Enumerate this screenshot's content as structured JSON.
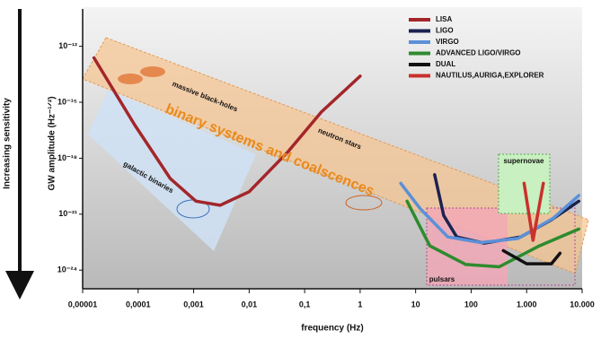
{
  "chart_data": {
    "type": "line",
    "side_label": "Increasing sensitivity",
    "y_label": "GW amplitude (Hz⁻¹ᐟ²)",
    "x_label": "frequency (Hz)",
    "xscale": "log",
    "yscale": "log",
    "xlim": [
      1e-05,
      10000
    ],
    "ylim": [
      1e-25,
      1e-10
    ],
    "xticks": [
      {
        "value": 1e-05,
        "label": "0,00001"
      },
      {
        "value": 0.0001,
        "label": "0,0001"
      },
      {
        "value": 0.001,
        "label": "0,001"
      },
      {
        "value": 0.01,
        "label": "0,01"
      },
      {
        "value": 0.1,
        "label": "0,1"
      },
      1,
      10,
      100,
      {
        "value": 1000,
        "label": "1.000"
      },
      {
        "value": 10000,
        "label": "10.000"
      }
    ],
    "yticks": [
      {
        "value": 1e-12,
        "label": "10⁻¹²"
      },
      {
        "value": 1e-15,
        "label": "10⁻¹⁵"
      },
      {
        "value": 1e-18,
        "label": "10⁻¹⁸"
      },
      {
        "value": 1e-21,
        "label": "10⁻²¹"
      },
      {
        "value": 1e-24,
        "label": "10⁻²⁴"
      }
    ],
    "legend": "top-right",
    "annotations": [
      "binary systems and coalscences",
      "massive black-holes",
      "galactic binaries",
      "neutron stars",
      "supernovae",
      "pulsars"
    ],
    "series": [
      {
        "name": "LISA",
        "color": "#a3262a",
        "x": [
          1.6e-05,
          8.7e-05,
          0.00038,
          0.0011,
          0.003,
          0.01,
          0.05,
          0.2,
          1
        ],
        "values": [
          2.4e-13,
          6e-17,
          8e-20,
          5e-21,
          3e-21,
          1.6e-20,
          2.2e-18,
          3e-16,
          2.5e-14
        ]
      },
      {
        "name": "LIGO",
        "color": "#1c2350",
        "x": [
          22,
          32,
          55,
          170,
          780,
          2800,
          8700
        ],
        "values": [
          1.3e-19,
          8.5e-22,
          6e-23,
          2.8e-23,
          6e-23,
          5e-22,
          5e-21
        ]
      },
      {
        "name": "VIRGO",
        "color": "#5b90d8",
        "x": [
          5.4,
          12,
          38,
          150,
          700,
          3000,
          8700
        ],
        "values": [
          4.5e-20,
          2e-21,
          6e-23,
          3e-23,
          5e-23,
          6e-22,
          1e-20
        ]
      },
      {
        "name": "ADVANCED LIGO/VIRGO",
        "color": "#2e8b2e",
        "x": [
          7,
          18,
          80,
          320,
          1700,
          8700
        ],
        "values": [
          5e-21,
          2e-23,
          2e-24,
          1.5e-24,
          2e-23,
          1.6e-22
        ]
      },
      {
        "name": "DUAL",
        "color": "#111111",
        "x": [
          380,
          1000,
          2800,
          4000
        ],
        "values": [
          1.1e-23,
          2.2e-24,
          2.2e-24,
          8e-24
        ]
      },
      {
        "name": "NAUTILUS,AURIGA,EXPLORER",
        "color": "#c9302c",
        "x": [
          900,
          1300,
          2000
        ],
        "values": [
          4.5e-20,
          4e-23,
          4.5e-20
        ]
      }
    ]
  }
}
